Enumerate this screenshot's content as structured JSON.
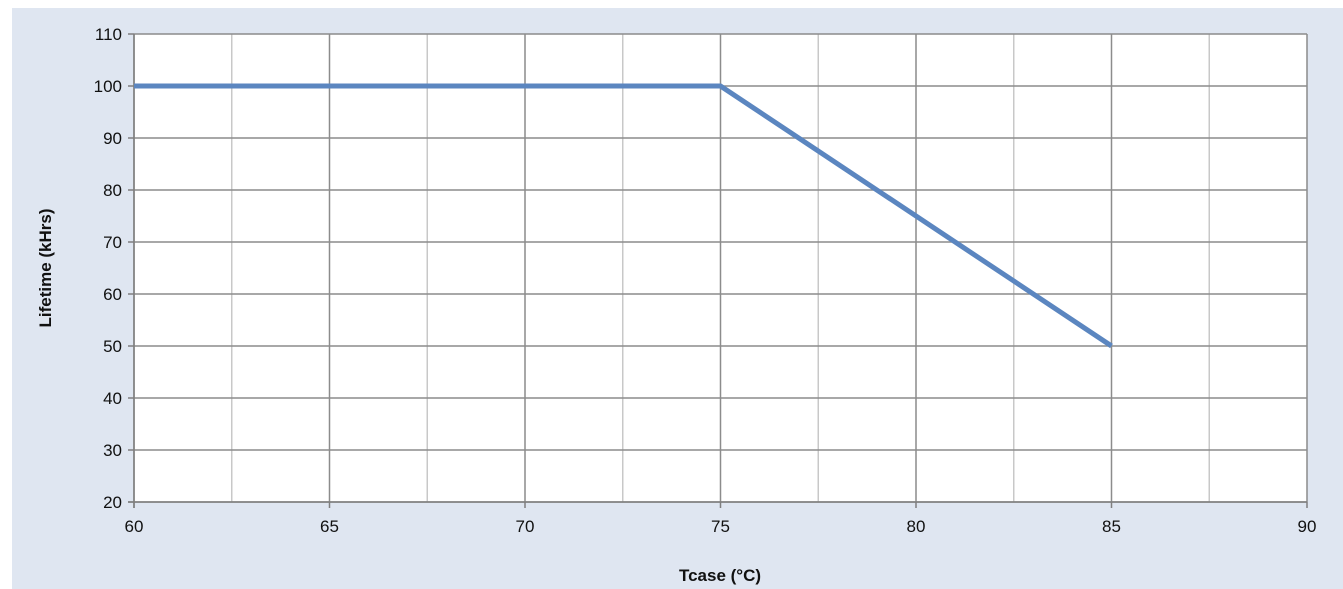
{
  "chart_data": {
    "type": "line",
    "title": "",
    "xlabel": "Tcase (°C)",
    "ylabel": "Lifetime (kHrs)",
    "xlim": [
      60,
      90
    ],
    "ylim": [
      20,
      110
    ],
    "x_ticks": [
      60,
      65,
      70,
      75,
      80,
      85,
      90
    ],
    "y_ticks": [
      20,
      30,
      40,
      50,
      60,
      70,
      80,
      90,
      100,
      110
    ],
    "x_minor_gridlines": [
      62.5,
      67.5,
      72.5,
      77.5,
      82.5,
      87.5
    ],
    "grid": true,
    "legend": "none",
    "series": [
      {
        "x": [
          60,
          75,
          85
        ],
        "y": [
          100,
          100,
          50
        ],
        "color": "#5b86c0"
      }
    ],
    "colors": {
      "frame_background": "#dfe6f1",
      "plot_background": "#ffffff",
      "major_grid": "#8c8c8c",
      "minor_grid": "#c8c8c8"
    }
  }
}
